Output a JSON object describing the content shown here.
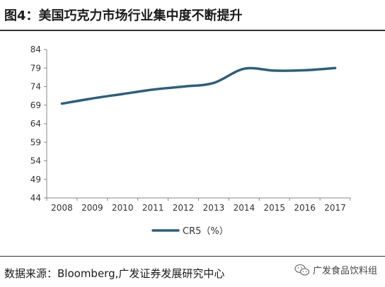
{
  "header": {
    "title": "图4：美国巧克力市场行业集中度不断提升"
  },
  "footer": {
    "source": "数据来源：Bloomberg,广发证券发展研究中心",
    "watermark_text": "广发食品饮料组",
    "watermark_icon": "wechat-logo-icon"
  },
  "chart_data": {
    "type": "line",
    "title": "",
    "xlabel": "",
    "ylabel": "",
    "x": [
      "2008",
      "2009",
      "2010",
      "2011",
      "2012",
      "2013",
      "2014",
      "2015",
      "2016",
      "2017"
    ],
    "y_ticks": [
      44,
      49,
      54,
      59,
      64,
      69,
      74,
      79,
      84
    ],
    "ylim": [
      44,
      84
    ],
    "grid": false,
    "legend_position": "bottom",
    "series": [
      {
        "name": "CR5（%）",
        "color": "#2b5f7e",
        "values": [
          69.4,
          70.8,
          72.0,
          73.2,
          74.0,
          75.0,
          78.8,
          78.3,
          78.4,
          79.0
        ]
      }
    ]
  }
}
